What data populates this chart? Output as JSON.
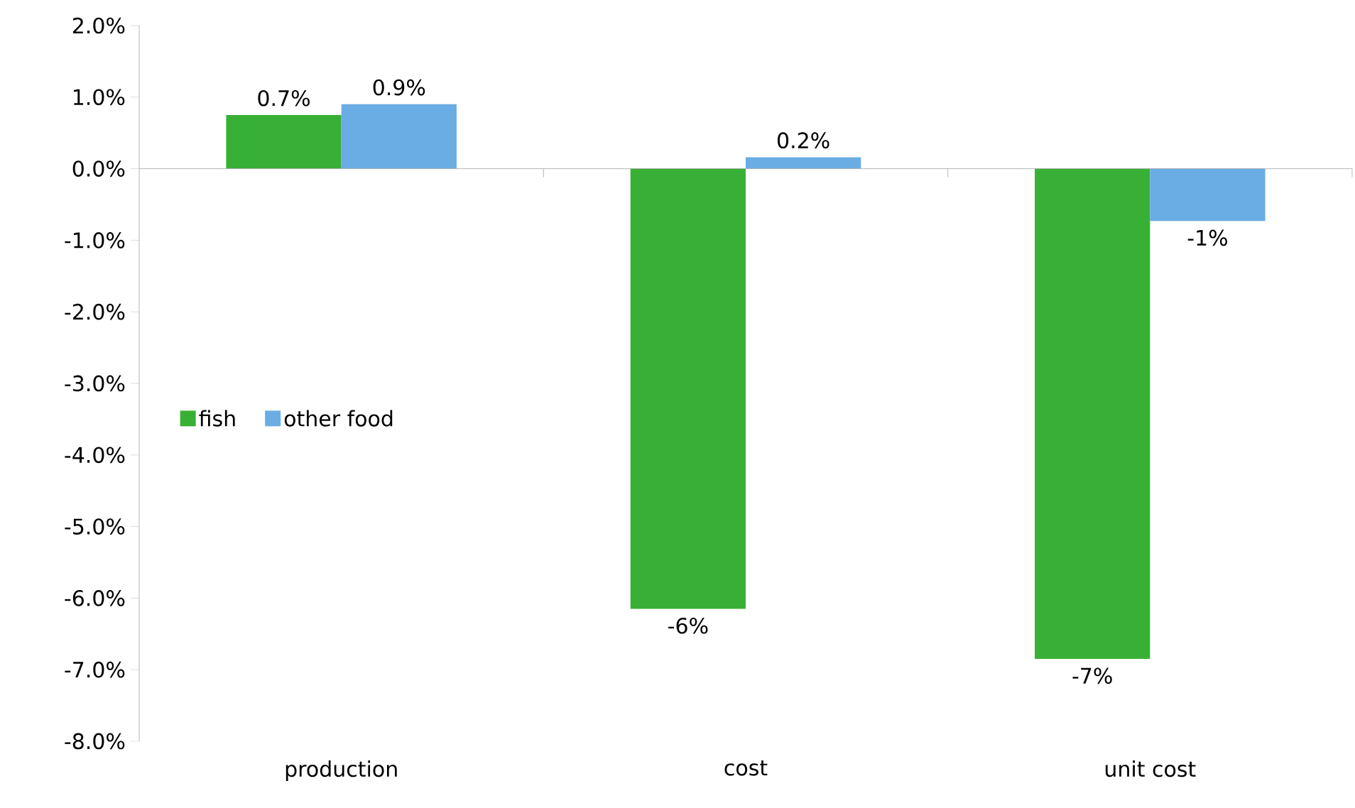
{
  "chart_data": {
    "type": "bar",
    "categories": [
      "production",
      "cost",
      "unit cost"
    ],
    "series": [
      {
        "name": "fish",
        "color": "#38b035",
        "values": [
          0.75,
          -6.15,
          -6.85
        ],
        "value_labels": [
          "0.7%",
          "-6%",
          "-7%"
        ]
      },
      {
        "name": "other food",
        "color": "#6aade4",
        "values": [
          0.9,
          0.16,
          -0.73
        ],
        "value_labels": [
          "0.9%",
          "0.2%",
          "-1%"
        ]
      }
    ],
    "ylim": [
      -8,
      2
    ],
    "yticks": [
      {
        "value": 2,
        "label": "2.0%"
      },
      {
        "value": 1,
        "label": "1.0%"
      },
      {
        "value": 0,
        "label": "0.0%"
      },
      {
        "value": -1,
        "label": "-1.0%"
      },
      {
        "value": -2,
        "label": "-2.0%"
      },
      {
        "value": -3,
        "label": "-3.0%"
      },
      {
        "value": -4,
        "label": "-4.0%"
      },
      {
        "value": -5,
        "label": "-5.0%"
      },
      {
        "value": -6,
        "label": "-6.0%"
      },
      {
        "value": -7,
        "label": "-7.0%"
      },
      {
        "value": -8,
        "label": "-8.0%"
      }
    ],
    "legend": "left"
  }
}
